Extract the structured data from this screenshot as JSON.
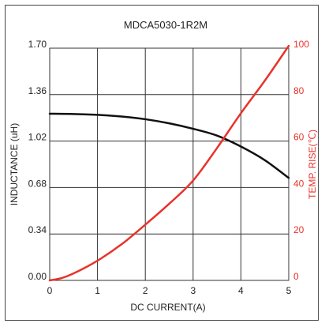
{
  "chart_data": {
    "type": "line",
    "title": "MDCA5030-1R2M",
    "xlabel": "DC CURRENT(A)",
    "ylabel_left": "INDUCTANCE (uH)",
    "ylabel_right": "TEMP. RISE(℃)",
    "xlim": [
      0,
      5
    ],
    "ylim_left": [
      0,
      1.7
    ],
    "ylim_right": [
      0,
      100
    ],
    "x_ticks": [
      "0",
      "1",
      "2",
      "3",
      "4",
      "5"
    ],
    "y_left_ticks": [
      "0.00",
      "0.34",
      "0.68",
      "1.02",
      "1.36",
      "1.70"
    ],
    "y_right_ticks": [
      "0",
      "20",
      "40",
      "60",
      "80",
      "100"
    ],
    "grid": true,
    "colors": {
      "inductance": "#111111",
      "temp_rise": "#e8332a"
    },
    "series": [
      {
        "axis": "left",
        "x": [
          0,
          0.5,
          1.0,
          1.5,
          2.0,
          2.5,
          3.0,
          3.5,
          4.0,
          4.5,
          5.0
        ],
        "values": [
          1.22,
          1.218,
          1.212,
          1.2,
          1.18,
          1.15,
          1.11,
          1.06,
          0.98,
          0.88,
          0.75
        ]
      },
      {
        "axis": "right",
        "x": [
          0,
          0.25,
          0.5,
          1.0,
          1.5,
          2.0,
          2.5,
          3.0,
          3.5,
          4.0,
          4.5,
          5.0
        ],
        "values": [
          0,
          1,
          3,
          8.5,
          15.5,
          24,
          33,
          43,
          57,
          72,
          86,
          101
        ]
      }
    ]
  }
}
